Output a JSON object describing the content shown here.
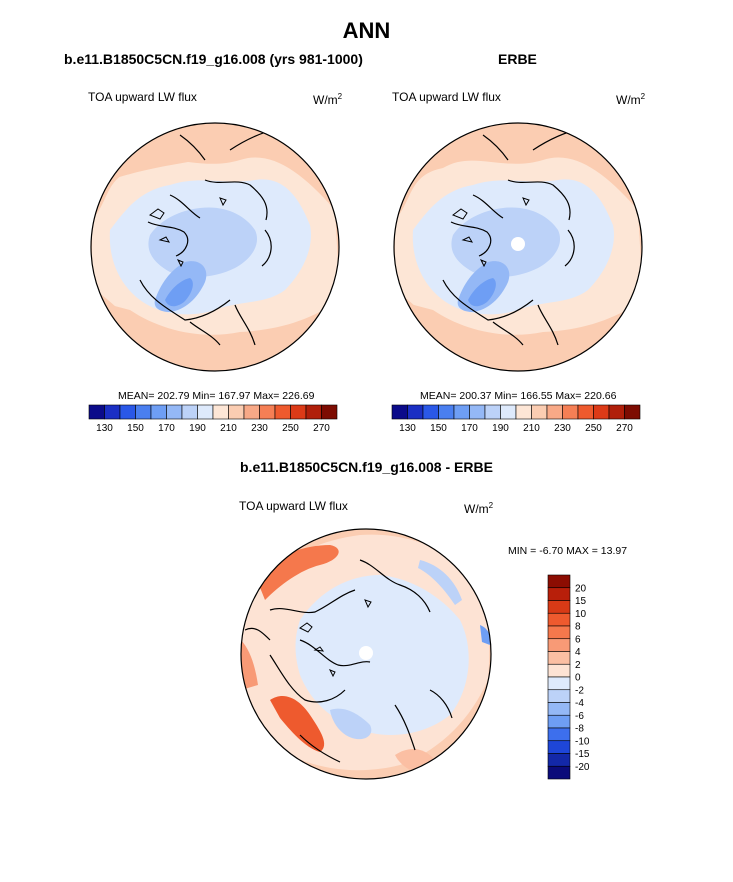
{
  "title": "ANN",
  "panels": [
    {
      "id": "model",
      "title": "b.e11.B1850C5CN.f19_g16.008 (yrs 981-1000)",
      "field": "TOA upward LW flux",
      "units": "W/m",
      "units_exp": "2",
      "stats": "MEAN= 202.79  Min= 167.97  Max= 226.69"
    },
    {
      "id": "obs",
      "title": "ERBE",
      "field": "TOA upward LW flux",
      "units": "W/m",
      "units_exp": "2",
      "stats": "MEAN= 200.37  Min= 166.55  Max= 220.66"
    },
    {
      "id": "diff",
      "title": "b.e11.B1850C5CN.f19_g16.008 - ERBE",
      "field": "TOA upward LW flux",
      "units": "W/m",
      "units_exp": "2",
      "stats": "MIN =  -6.70 MAX =  13.97"
    }
  ],
  "chart_data": [
    {
      "type": "polar-contour-map",
      "projection": "north polar stereographic",
      "title": "b.e11.B1850C5CN.f19_g16.008 (yrs 981-1000)",
      "variable": "TOA upward LW flux",
      "units": "W/m2",
      "mean": 202.79,
      "min": 167.97,
      "max": 226.69,
      "colorbar": {
        "levels": [
          130,
          140,
          150,
          160,
          170,
          180,
          190,
          200,
          210,
          220,
          230,
          240,
          250,
          260,
          270
        ],
        "tick_labels": [
          "130",
          "150",
          "170",
          "190",
          "210",
          "230",
          "250",
          "270"
        ],
        "colors": [
          "#0b0b8a",
          "#1b2fc4",
          "#2a58e8",
          "#4a7ff0",
          "#6e9ef4",
          "#94b8f6",
          "#bcd2f8",
          "#deeafc",
          "#fde6d6",
          "#fbcdb2",
          "#f8a987",
          "#f57f55",
          "#ee5a2e",
          "#dc3a17",
          "#b01f0a",
          "#7d0c02"
        ]
      }
    },
    {
      "type": "polar-contour-map",
      "projection": "north polar stereographic",
      "title": "ERBE",
      "variable": "TOA upward LW flux",
      "units": "W/m2",
      "mean": 200.37,
      "min": 166.55,
      "max": 220.66,
      "colorbar": {
        "levels": [
          130,
          140,
          150,
          160,
          170,
          180,
          190,
          200,
          210,
          220,
          230,
          240,
          250,
          260,
          270
        ],
        "tick_labels": [
          "130",
          "150",
          "170",
          "190",
          "210",
          "230",
          "250",
          "270"
        ],
        "colors": [
          "#0b0b8a",
          "#1b2fc4",
          "#2a58e8",
          "#4a7ff0",
          "#6e9ef4",
          "#94b8f6",
          "#bcd2f8",
          "#deeafc",
          "#fde6d6",
          "#fbcdb2",
          "#f8a987",
          "#f57f55",
          "#ee5a2e",
          "#dc3a17",
          "#b01f0a",
          "#7d0c02"
        ]
      }
    },
    {
      "type": "polar-contour-map",
      "projection": "north polar stereographic",
      "title": "b.e11.B1850C5CN.f19_g16.008 - ERBE",
      "variable": "TOA upward LW flux",
      "units": "W/m2",
      "min": -6.7,
      "max": 13.97,
      "colorbar": {
        "orientation": "vertical",
        "tick_labels_top_to_bottom": [
          "20",
          "15",
          "10",
          "8",
          "6",
          "4",
          "2",
          "0",
          "-2",
          "-4",
          "-6",
          "-8",
          "-10",
          "-15",
          "-20"
        ],
        "colors_top_to_bottom": [
          "#8c0d02",
          "#b81f0a",
          "#d83a16",
          "#ee5a2e",
          "#f5784c",
          "#f89a76",
          "#fbbfa3",
          "#fde3d4",
          "#deeafc",
          "#bcd2f8",
          "#94b8f6",
          "#6e9ef4",
          "#3d6fed",
          "#1e46d8",
          "#1328a8",
          "#0b0b7a"
        ]
      }
    }
  ]
}
